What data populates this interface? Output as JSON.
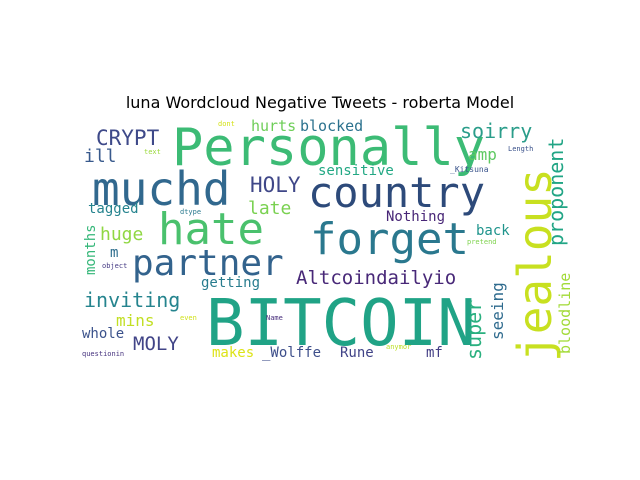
{
  "title": "luna Wordcloud Negative Tweets - roberta Model",
  "words": [
    {
      "text": "BITCOIN",
      "color": "#20a386"
    },
    {
      "text": "Personally",
      "color": "#3cbb75"
    },
    {
      "text": "muchd",
      "color": "#31688e"
    },
    {
      "text": "country",
      "color": "#2d4a7a"
    },
    {
      "text": "hate",
      "color": "#4ac16d"
    },
    {
      "text": "forget",
      "color": "#2a788e"
    },
    {
      "text": "partner",
      "color": "#33638d"
    },
    {
      "text": "jealous",
      "color": "#c8e020"
    },
    {
      "text": "Altcoindailyio",
      "color": "#482878"
    },
    {
      "text": "proponent",
      "color": "#21a585"
    },
    {
      "text": "CRYPT",
      "color": "#3e4989"
    },
    {
      "text": "HOLY",
      "color": "#3f4788"
    },
    {
      "text": "inviting",
      "color": "#25848e"
    },
    {
      "text": "super",
      "color": "#2ab07f"
    },
    {
      "text": "soirry",
      "color": "#2a9d8a"
    },
    {
      "text": "huge",
      "color": "#90d743"
    },
    {
      "text": "late",
      "color": "#7ad151"
    },
    {
      "text": "MOLY",
      "color": "#414487"
    },
    {
      "text": "hurts",
      "color": "#6ece58"
    },
    {
      "text": "blocked",
      "color": "#2c728e"
    },
    {
      "text": "amp",
      "color": "#5ec962"
    },
    {
      "text": "ill",
      "color": "#38598c"
    },
    {
      "text": "sensitive",
      "color": "#22a884"
    },
    {
      "text": "tagged",
      "color": "#25838e"
    },
    {
      "text": "Nothing",
      "color": "#482677"
    },
    {
      "text": "back",
      "color": "#1f948c"
    },
    {
      "text": "getting",
      "color": "#287c8e"
    },
    {
      "text": "mins",
      "color": "#c2df23"
    },
    {
      "text": "seeing",
      "color": "#2f6b8e"
    },
    {
      "text": "bloodline",
      "color": "#a2da37"
    },
    {
      "text": "whole",
      "color": "#3b528b"
    },
    {
      "text": "makes",
      "color": "#dde318"
    },
    {
      "text": "_Wolffe",
      "color": "#3d4e8a"
    },
    {
      "text": "Rune",
      "color": "#404387"
    },
    {
      "text": "mf",
      "color": "#433e85"
    },
    {
      "text": "months",
      "color": "#35b779"
    },
    {
      "text": "m",
      "color": "#2e6e8e"
    },
    {
      "text": "dont",
      "color": "#d5e21a"
    },
    {
      "text": "text",
      "color": "#9bd93c"
    },
    {
      "text": "_Kitsuna",
      "color": "#3a548c"
    },
    {
      "text": "Length",
      "color": "#3b528b"
    },
    {
      "text": "dtype",
      "color": "#29798e"
    },
    {
      "text": "pretend",
      "color": "#7fd34e"
    },
    {
      "text": "object",
      "color": "#443983"
    },
    {
      "text": "even",
      "color": "#d0e11c"
    },
    {
      "text": "Name",
      "color": "#472d7b"
    },
    {
      "text": "anymor",
      "color": "#bddf26"
    },
    {
      "text": "questionin",
      "color": "#46337e"
    }
  ]
}
